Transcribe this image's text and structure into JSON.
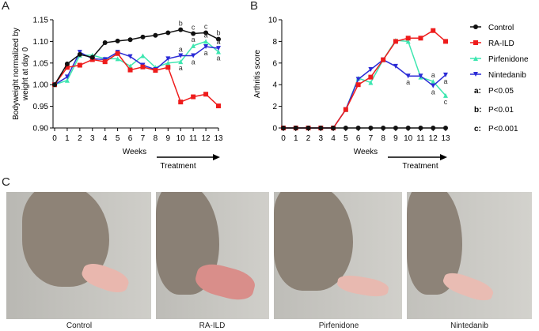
{
  "panels": {
    "a": "A",
    "b": "B",
    "c": "C"
  },
  "colors": {
    "Control": "#111111",
    "RA-ILD": "#ee1c1c",
    "Pirfenidone": "#3ee6b0",
    "Nintedanib": "#2b2bd6"
  },
  "chart_data": [
    {
      "type": "line",
      "title": "A",
      "xlabel": "Weeks",
      "annotation": "Treatment",
      "ylabel": "Bodyweight normalized by weight at day 0",
      "x": [
        0,
        1,
        2,
        3,
        4,
        5,
        6,
        7,
        8,
        9,
        10,
        11,
        12,
        13
      ],
      "ylim": [
        0.9,
        1.15
      ],
      "yticks": [
        "0.90",
        "0.95",
        "1.00",
        "1.05",
        "1.10",
        "1.15"
      ],
      "series": [
        {
          "name": "Control",
          "marker": "circle",
          "values": [
            1.0,
            1.048,
            1.07,
            1.063,
            1.097,
            1.101,
            1.104,
            1.11,
            1.114,
            1.12,
            1.127,
            1.118,
            1.12,
            1.105
          ]
        },
        {
          "name": "RA-ILD",
          "marker": "square",
          "values": [
            1.0,
            1.04,
            1.045,
            1.058,
            1.053,
            1.072,
            1.034,
            1.041,
            1.033,
            1.04,
            0.96,
            0.972,
            0.978,
            0.951
          ]
        },
        {
          "name": "Pirfenidone",
          "marker": "triangle-up",
          "values": [
            1.0,
            1.01,
            1.068,
            1.068,
            1.06,
            1.06,
            1.043,
            1.067,
            1.04,
            1.05,
            1.053,
            1.09,
            1.1,
            1.076
          ]
        },
        {
          "name": "Nintedanib",
          "marker": "triangle-down",
          "values": [
            1.0,
            1.018,
            1.075,
            1.06,
            1.058,
            1.075,
            1.065,
            1.045,
            1.035,
            1.06,
            1.067,
            1.067,
            1.088,
            1.084
          ]
        }
      ],
      "significance": [
        {
          "x": 10,
          "value": 1.127,
          "label": "b",
          "pos": "above"
        },
        {
          "x": 11,
          "value": 1.118,
          "label": "c",
          "pos": "above"
        },
        {
          "x": 12,
          "value": 1.12,
          "label": "c",
          "pos": "above"
        },
        {
          "x": 13,
          "value": 1.105,
          "label": "b",
          "pos": "above"
        },
        {
          "x": 10,
          "value": 1.067,
          "label": "a",
          "pos": "above"
        },
        {
          "x": 10,
          "value": 1.053,
          "label": "a",
          "pos": "below"
        },
        {
          "x": 11,
          "value": 1.09,
          "label": "a",
          "pos": "above"
        },
        {
          "x": 11,
          "value": 1.067,
          "label": "a",
          "pos": "below"
        },
        {
          "x": 12,
          "value": 1.1,
          "label": "a",
          "pos": "above"
        },
        {
          "x": 12,
          "value": 1.088,
          "label": "a",
          "pos": "below"
        },
        {
          "x": 13,
          "value": 1.084,
          "label": "a",
          "pos": "above"
        },
        {
          "x": 13,
          "value": 1.076,
          "label": "a",
          "pos": "below"
        }
      ]
    },
    {
      "type": "line",
      "title": "B",
      "xlabel": "Weeks",
      "annotation": "Treatment",
      "ylabel": "Arthritis score",
      "x": [
        0,
        1,
        2,
        3,
        4,
        5,
        6,
        7,
        8,
        9,
        10,
        11,
        12,
        13
      ],
      "ylim": [
        0,
        10
      ],
      "yticks": [
        "0",
        "2",
        "4",
        "6",
        "8",
        "10"
      ],
      "series": [
        {
          "name": "Control",
          "marker": "circle",
          "values": [
            0,
            0,
            0,
            0,
            0,
            0,
            0,
            0,
            0,
            0,
            0,
            0,
            0,
            0
          ]
        },
        {
          "name": "RA-ILD",
          "marker": "square",
          "values": [
            0,
            0,
            0,
            0,
            0,
            1.7,
            4.0,
            4.7,
            6.3,
            8.0,
            8.3,
            8.3,
            9.0,
            8.0
          ]
        },
        {
          "name": "Pirfenidone",
          "marker": "triangle-up",
          "values": [
            0,
            0,
            0,
            0,
            0,
            1.7,
            4.6,
            4.2,
            6.3,
            8.1,
            8.0,
            4.7,
            4.3,
            3.0
          ]
        },
        {
          "name": "Nintedanib",
          "marker": "triangle-down",
          "values": [
            0,
            0,
            0,
            0,
            0,
            1.7,
            4.5,
            5.4,
            6.3,
            5.7,
            4.8,
            4.8,
            3.9,
            4.9
          ]
        }
      ],
      "significance": [
        {
          "x": 10,
          "value": 4.8,
          "label": "a",
          "pos": "below"
        },
        {
          "x": 12,
          "value": 4.3,
          "label": "a",
          "pos": "above"
        },
        {
          "x": 12,
          "value": 3.9,
          "label": "a",
          "pos": "below"
        },
        {
          "x": 13,
          "value": 4.9,
          "label": "a",
          "pos": "below"
        },
        {
          "x": 13,
          "value": 3.0,
          "label": "c",
          "pos": "below"
        }
      ]
    }
  ],
  "legend": {
    "items": [
      "Control",
      "RA-ILD",
      "Pirfenidone",
      "Nintedanib"
    ],
    "pvalues": [
      {
        "key": "a:",
        "text": "P<0.05"
      },
      {
        "key": "b:",
        "text": "P<0.01"
      },
      {
        "key": "c:",
        "text": "P<0.001"
      }
    ]
  },
  "photos": [
    {
      "caption": "Control"
    },
    {
      "caption": "RA-ILD"
    },
    {
      "caption": "Pirfenidone"
    },
    {
      "caption": "Nintedanib"
    }
  ]
}
